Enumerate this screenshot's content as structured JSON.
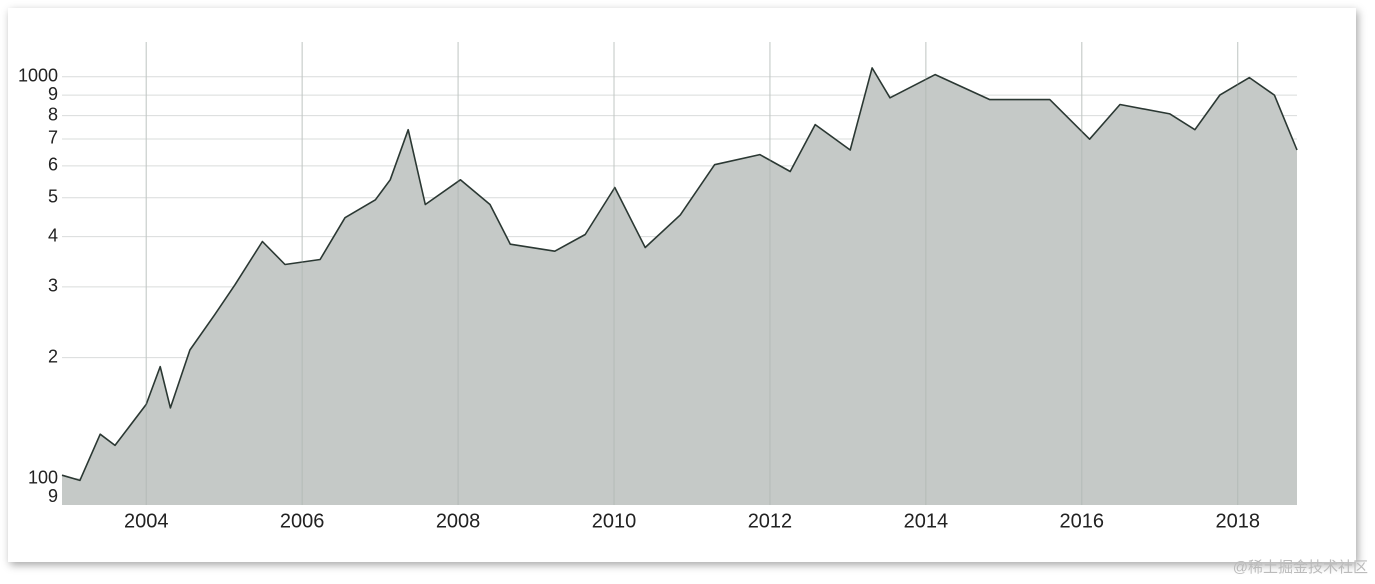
{
  "chart_data": {
    "type": "area",
    "log_scale": true,
    "grid": true,
    "color": "#2b3833",
    "fill_color": "#c5c9c7",
    "x": [
      2002.92,
      2003.15,
      2003.41,
      2003.6,
      2004.0,
      2004.18,
      2004.31,
      2004.56,
      2004.88,
      2005.14,
      2005.49,
      2005.78,
      2006.23,
      2006.55,
      2006.94,
      2007.13,
      2007.36,
      2007.58,
      2008.03,
      2008.41,
      2008.67,
      2009.24,
      2009.63,
      2010.01,
      2010.4,
      2010.85,
      2011.29,
      2011.87,
      2012.26,
      2012.58,
      2013.03,
      2013.31,
      2013.54,
      2014.12,
      2014.82,
      2015.59,
      2016.1,
      2016.49,
      2017.13,
      2017.45,
      2017.77,
      2018.15,
      2018.47,
      2018.76
    ],
    "values": [
      102,
      99,
      129,
      121,
      153,
      190,
      150,
      209,
      256,
      304,
      389,
      341,
      351,
      446,
      494,
      554,
      738,
      481,
      554,
      481,
      383,
      368,
      405,
      530,
      376,
      453,
      604,
      640,
      581,
      760,
      657,
      1052,
      886,
      1012,
      877,
      877,
      699,
      853,
      808,
      738,
      900,
      995,
      900,
      657
    ],
    "xlim": [
      2002.92,
      2018.76
    ],
    "xticks": [
      2004,
      2006,
      2008,
      2010,
      2012,
      2014,
      2016,
      2018
    ],
    "ylim": [
      86,
      1220
    ],
    "yticks": [
      {
        "value": 90,
        "label": "9"
      },
      100,
      {
        "value": 200,
        "label": "2"
      },
      {
        "value": 300,
        "label": "3"
      },
      {
        "value": 400,
        "label": "4"
      },
      {
        "value": 500,
        "label": "5"
      },
      {
        "value": 600,
        "label": "6"
      },
      {
        "value": 700,
        "label": "7"
      },
      {
        "value": 800,
        "label": "8"
      },
      {
        "value": 900,
        "label": "9"
      },
      1000
    ],
    "watermark": "@稀土掘金技术社区"
  }
}
